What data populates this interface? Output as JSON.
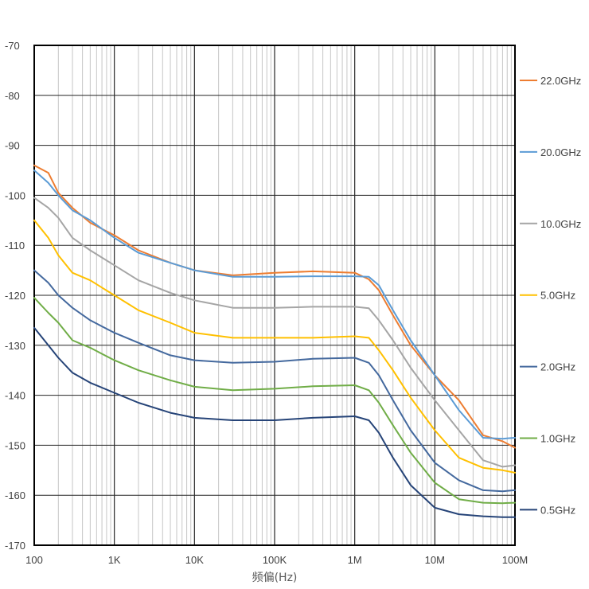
{
  "chart_data": {
    "type": "line",
    "title": "",
    "xlabel": "频偏(Hz)",
    "ylabel": "",
    "x_scale": "log",
    "xlim": [
      100,
      100000000
    ],
    "ylim": [
      -170,
      -70
    ],
    "x_ticks": [
      {
        "value": 100,
        "label": "100"
      },
      {
        "value": 1000,
        "label": "1K"
      },
      {
        "value": 10000,
        "label": "10K"
      },
      {
        "value": 100000,
        "label": "100K"
      },
      {
        "value": 1000000,
        "label": "1M"
      },
      {
        "value": 10000000,
        "label": "10M"
      },
      {
        "value": 100000000,
        "label": "100M"
      }
    ],
    "y_ticks": [
      -70,
      -80,
      -90,
      -100,
      -110,
      -120,
      -130,
      -140,
      -150,
      -160,
      -170
    ],
    "grid": true,
    "legend_position": "right",
    "series": [
      {
        "name": "22.0GHz",
        "color": "#ED7D31",
        "x": [
          100,
          150,
          200,
          300,
          500,
          1000,
          2000,
          5000,
          10000,
          30000,
          100000,
          300000,
          1000000,
          1500000,
          2000000,
          3000000,
          5000000,
          10000000,
          20000000,
          40000000,
          70000000,
          100000000
        ],
        "y": [
          -94,
          -95.5,
          -99.5,
          -102.5,
          -105.5,
          -108,
          -111,
          -113.5,
          -115,
          -116,
          -115.5,
          -115.2,
          -115.5,
          -116.8,
          -119,
          -124,
          -130,
          -136,
          -141,
          -148,
          -149.2,
          -150.5
        ]
      },
      {
        "name": "20.0GHz",
        "color": "#5B9BD5",
        "x": [
          100,
          150,
          200,
          300,
          500,
          1000,
          2000,
          5000,
          10000,
          30000,
          100000,
          300000,
          1000000,
          1500000,
          2000000,
          3000000,
          5000000,
          10000000,
          20000000,
          40000000,
          70000000,
          100000000
        ],
        "y": [
          -95,
          -97.5,
          -100,
          -103,
          -105,
          -108.5,
          -111.5,
          -113.5,
          -115,
          -116.3,
          -116.3,
          -116.2,
          -116.2,
          -116.3,
          -118,
          -123,
          -129,
          -136,
          -143,
          -148.5,
          -148.7,
          -148.5
        ]
      },
      {
        "name": "10.0GHz",
        "color": "#A5A5A5",
        "x": [
          100,
          150,
          200,
          300,
          500,
          1000,
          2000,
          5000,
          10000,
          30000,
          100000,
          300000,
          1000000,
          1500000,
          2000000,
          3000000,
          5000000,
          10000000,
          20000000,
          40000000,
          70000000,
          100000000
        ],
        "y": [
          -100.5,
          -102.5,
          -104.5,
          -108.5,
          -111,
          -114,
          -117,
          -119.5,
          -121,
          -122.5,
          -122.5,
          -122.3,
          -122.3,
          -122.6,
          -125,
          -129,
          -134.5,
          -141,
          -147,
          -153,
          -154.3,
          -154
        ]
      },
      {
        "name": "5.0GHz",
        "color": "#FFC000",
        "x": [
          100,
          150,
          200,
          300,
          500,
          1000,
          2000,
          5000,
          10000,
          30000,
          100000,
          300000,
          1000000,
          1500000,
          2000000,
          3000000,
          5000000,
          10000000,
          20000000,
          40000000,
          70000000,
          100000000
        ],
        "y": [
          -105,
          -108.5,
          -112,
          -115.5,
          -117,
          -120,
          -123,
          -125.5,
          -127.5,
          -128.5,
          -128.5,
          -128.5,
          -128.2,
          -128.5,
          -131,
          -135,
          -140.5,
          -147,
          -152.5,
          -154.5,
          -155,
          -155.5
        ]
      },
      {
        "name": "2.0GHz",
        "color": "#44699E",
        "x": [
          100,
          150,
          200,
          300,
          500,
          1000,
          2000,
          5000,
          10000,
          30000,
          100000,
          300000,
          1000000,
          1500000,
          2000000,
          3000000,
          5000000,
          10000000,
          20000000,
          40000000,
          70000000,
          100000000
        ],
        "y": [
          -115,
          -117.5,
          -120,
          -122.5,
          -125,
          -127.5,
          -129.5,
          -132,
          -133,
          -133.5,
          -133.3,
          -132.7,
          -132.5,
          -133.5,
          -136,
          -141,
          -147,
          -153.5,
          -157,
          -159,
          -159.2,
          -159
        ]
      },
      {
        "name": "1.0GHz",
        "color": "#70AD47",
        "x": [
          100,
          150,
          200,
          300,
          500,
          1000,
          2000,
          5000,
          10000,
          30000,
          100000,
          300000,
          1000000,
          1500000,
          2000000,
          3000000,
          5000000,
          10000000,
          20000000,
          40000000,
          70000000,
          100000000
        ],
        "y": [
          -120.5,
          -123.5,
          -125.5,
          -129,
          -130.5,
          -133,
          -135,
          -137,
          -138.3,
          -139,
          -138.7,
          -138.2,
          -138,
          -139,
          -141.5,
          -146,
          -151.5,
          -157.5,
          -160.8,
          -161.5,
          -161.6,
          -161.5
        ]
      },
      {
        "name": "0.5GHz",
        "color": "#264478",
        "x": [
          100,
          150,
          200,
          300,
          500,
          1000,
          2000,
          5000,
          10000,
          30000,
          100000,
          300000,
          1000000,
          1500000,
          2000000,
          3000000,
          5000000,
          10000000,
          20000000,
          40000000,
          70000000,
          100000000
        ],
        "y": [
          -126.5,
          -130,
          -132.5,
          -135.5,
          -137.5,
          -139.5,
          -141.5,
          -143.5,
          -144.5,
          -145,
          -145,
          -144.5,
          -144.2,
          -145,
          -147.5,
          -152.5,
          -158,
          -162.5,
          -163.8,
          -164.2,
          -164.4,
          -164.4
        ]
      }
    ]
  }
}
